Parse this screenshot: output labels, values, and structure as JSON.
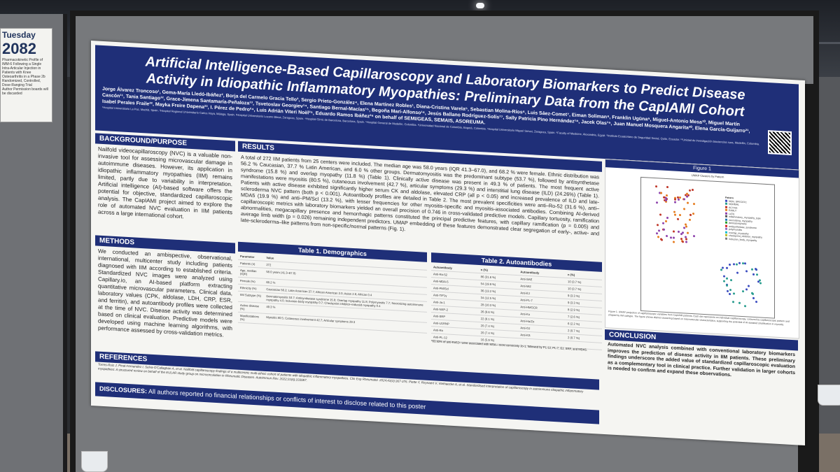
{
  "side_card": {
    "day": "Tuesday",
    "number": "2082",
    "blurb": "Pharmacokinetic Profile of IMM-6 Following a Single Intra-Articular Injection in Patients with Knee Osteoarthritis in a Phase 2b Randomized, Controlled, Dose-Ranging Trial",
    "footer": "Author Permission boards will be discarded"
  },
  "poster": {
    "title": "Artificial Intelligence-Based Capillaroscopy and Laboratory Biomarkers to Predict Disease Activity in Idiopathic Inflammatory Myopathies: Preliminary Data from the CapIAMI Cohort",
    "authors": "Jorge Álvarez Troncoso¹, Gema-María Lledó-Ibáñez², Borja del Carmelo Gracia Tello³, Sergio Prieto-González⁴, Elena Martínez Robles¹, Diana-Cristina Varela⁵, Sebastian Molina-Ríos⁶, Luis Sáez-Comet⁷, Eiman Soliman⁸, Franklin Ugüna⁹, Miguel-Antonio Mesa¹⁰, Miguel Martín Cascón¹¹, Tania Santiago¹², Grace-Jimena Santamaría-Peñaloza¹³, Tsvetoslav Georgiev¹⁴, Santiago Bernal-Macías¹⁵, Begoña Marí-Alfonso¹⁶, Jesús Ballano Rodríguez-Solís¹⁷, Sally Patricia Pino Hernández¹⁸, Jacek Olas¹⁹, Juan Manuel Mosquera Angarita²⁰, Elena García-Guijarro²¹, Isabel Perales Fraile²², Mayka Freire Dapena²³, I. Pérez de Pedro²⁴, Luis Adrián Viteri Noël²⁵, Eduardo Ramos Ibáñez²⁶ on behalf of SEMI/GEAS, SEMAIS, ASOREUMA.",
    "affiliations": "¹Hospital Universitario La Paz, Madrid, Spain. ²Hospital Regional Universitario Carlos Haya, Málaga, Spain. ³Hospital Universitario Lozano Blesa, Zaragoza, Spain. ⁴Hospital Clínic de Barcelona, Barcelona, Spain. ⁵Hospital General de Medellín, Colombia. ⁶Universidad Nacional de Colombia, Bogotá, Colombia. ⁷Hospital Universitario Miguel Servet, Zaragoza, Spain. ⁸Faculty of Medicine, Alexandria, Egypt. ⁹Instituto Ecuatoriano de Seguridad Social, Quito, Ecuador. ¹⁰Unidad de investigación biociencias sura, Medellín, Colombia.",
    "sections": {
      "background_title": "BACKGROUND/PURPOSE",
      "background_text": "Nailfold videocapillaroscopy (NVC) is a valuable non-invasive tool for assessing microvascular damage in autoimmune diseases. However, its application in idiopathic inflammatory myopathies (IIM) remains limited, partly due to variability in interpretation. Artificial intelligence (AI)-based software offers the potential for objective, standardized capillaroscopic analysis. The CapIAMI project aimed to explore the role of automated NVC evaluation in IIM patients across a large international cohort.",
      "methods_title": "METHODS",
      "methods_text": "We conducted an ambispective, observational, international, multicenter study including patients diagnosed with IIM according to established criteria. Standardized NVC images were analyzed using Capillary.io, an AI-based platform extracting quantitative microvascular parameters. Clinical data, laboratory values (CPK, aldolase, LDH, CRP, ESR, and ferritin), and autoantibody profiles were collected at the time of NVC. Disease activity was determined based on clinical evaluation. Predictive models were developed using machine learning algorithms, with performance assessed by cross-validation metrics.",
      "results_title": "RESULTS",
      "results_text": "A total of 272 IIM patients from 25 centers were included. The median age was 58.0 years (IQR 41.3–67.0), and 68.2 % were female. Ethnic distribution was 56.2 % Caucasian, 37.7 % Latin American, and 6.0 % other groups. Dermatomyositis was the predominant subtype (53.7 %), followed by antisynthetase syndrome (15.8 %) and overlap myopathy (11.8 %) (Table 1). Clinically active disease was present in 49.3 % of patients. The most frequent active manifestations were myositis (80.5 %), cutaneous involvement (42.7 %), articular symptoms (29.3 %) and interstitial lung disease (ILD) (24.26%) (Table 1). Patients with active disease exhibited significantly higher serum CK and aldolase, elevated CRP (all p < 0.05) and increased prevalence of ILD and late-scleroderma NVC pattern (both p < 0.001). Autoantibody profiles are detailed in Table 2. The most prevalent specificities were anti–Ro-52 (31.6 %), anti–MDA5 (19.9 %) and anti–PM/Scl (13.2 %), with lesser frequencies for other myositis-specific and myositis-associated antibodies. Combining AI-derived capillaroscopic metrics with laboratory biomarkers yielded an overall precision of 0.746 in cross-validated predictive models. Capillary tortuosity, ramification abnormalities, megacapillary presence and hemorrhagic patterns constituted the principal predictive features, with capillary ramification (p = 0.005) and average limb width (p = 0.026) remaining independent predictors. UMAP embedding of these features demonstrated clear segregation of early-, active- and late-scleroderma–like patterns from non-specific/normal patterns (Fig. 1).",
      "conclusion_title": "CONCLUSION",
      "conclusion_text": "Automated NVC analysis combined with conventional laboratory biomarkers improves the prediction of disease activity in IIM patients. These preliminary findings underscore the added value of standardized capillaroscopic evaluation as a complementary tool in clinical practice. Further validation in larger cohorts is needed to confirm and expand these observations.",
      "references_title": "REFERENCES",
      "references_text": "Torres-Ruiz J, Pinal-Fernandez I, Selva-O'Callaghan A, et al. Nailfold capillaroscopy findings of a multicentric multi-ethnic cohort of patients with idiopathic inflammatory myopathies. Clin Exp Rheumatol. 2024;42(2):367-376. Piette Y, Reynaert V, Vanhaecke A, et al. Standardised interpretation of capillaroscopy in autoimmune idiopathic inflammatory myopathies: A structured review on behalf of the EULAR study group on microcirculation in Rheumatic Diseases. Autoimmun Rev. 2022;21(6):103087.",
      "disclosures_label": "DISCLOSURES:",
      "disclosures_text": "All authors reported no financial relationships or conflicts of interest to disclose related to this poster"
    },
    "table1": {
      "title": "Table 1. Demographics",
      "headers": [
        "Parameter",
        "Value"
      ],
      "rows": [
        [
          "Patients (n)",
          "272"
        ],
        [
          "Age, median (IQR)",
          "58.0 years (41.3–67.0)"
        ],
        [
          "Female (%)",
          "68.2 %"
        ],
        [
          "Ethnicity (%)",
          "Caucasian 56.2; Latin American 37.7; African American 3.0; Asian 2.6; African 0.4"
        ],
        [
          "IIM Subtype (%)",
          "Dermatomyositis 53.7; Antisynthetase syndrome 15.8; Overlap myopathy 11.8; Polymyositis 7.7; Necrotizing autoimmune myopathy 4.0; Inclusion-body myopathy 0.7; Checkpoint inhibitor–induced myopathy 0.4"
        ],
        [
          "Active disease (%)",
          "49.3 %"
        ],
        [
          "Manifestations (%)",
          "Myositis 80.5; Cutaneous involvement 42.7; Articular symptoms 29.3"
        ]
      ]
    },
    "table2": {
      "title": "Table 2. Autoantibodies",
      "headers": [
        "Autoantibody",
        "n (%)",
        "Autoantibody",
        "n (%)"
      ],
      "rows": [
        [
          "Anti-Ro-52",
          "86 (31.6 %)",
          "Anti-SAE",
          "10 (3.7 %)"
        ],
        [
          "Anti-MDA-5",
          "54 (19.9 %)",
          "Anti-Mi2",
          "10 (3.7 %)"
        ],
        [
          "Anti-PM/Scl",
          "36 (13.2 %)",
          "Anti-EJ",
          "9 (3.3 %)"
        ],
        [
          "Anti-TIF1γ",
          "34 (12.5 %)",
          "Anti-PL-7",
          "9 (3.3 %)"
        ],
        [
          "Anti-Jo-1",
          "28 (10.3 %)",
          "Anti-HMGCR",
          "8 (2.9 %)"
        ],
        [
          "Anti-NXP-2",
          "26 (9.6 %)",
          "Anti-Ku",
          "7 (2.6 %)"
        ],
        [
          "Anti-SRP",
          "22 (8.1 %)",
          "Anti-Ha/Zo",
          "6 (2.2 %)"
        ],
        [
          "Anti-U1RNP",
          "20 (7.4 %)",
          "Anti-OJ",
          "2 (0.7 %)"
        ],
        [
          "Anti-Ro",
          "20 (7.4 %)",
          "Anti-KS",
          "2 (0.7 %)"
        ],
        [
          "Anti-PL-12",
          "16 (5.9 %)",
          "",
          ""
        ]
      ],
      "footnote": "*63.93% of anti-Ro52+ were associated with MSA—most commonly Jo-1, followed by PL-12, PL-7, EJ, SRP, and MDA5."
    },
    "figure": {
      "title": "Figure 1",
      "plot_title": "UMAP Clusters by Pattern",
      "legend_title": "Pattern",
      "legend": [
        {
          "label": "NON_SPECIFIC",
          "color": "#3b4cc0"
        },
        {
          "label": "NORMAL",
          "color": "#2a9d8f"
        },
        {
          "label": "ACTIVE",
          "color": "#c0392b"
        },
        {
          "label": "EARLY",
          "color": "#e67e22"
        },
        {
          "label": "LATE",
          "color": "#8e44ad"
        },
        {
          "label": "inflammatory_myopathy_type",
          "color": "#555555"
        },
        {
          "label": "necrotizing_myopathy",
          "color": "#1f77b4"
        },
        {
          "label": "dermatomyositis",
          "color": "#2ca02c"
        },
        {
          "label": "antisynthetase_syndrome",
          "color": "#d62728"
        },
        {
          "label": "polymyositis",
          "color": "#9467bd"
        },
        {
          "label": "overlap_myopathy",
          "color": "#17becf"
        },
        {
          "label": "checkpoint_inhibitor_myopathy",
          "color": "#bcbd22"
        },
        {
          "label": "inclusion_body_myopathy",
          "color": "#7f7f7f"
        }
      ],
      "caption": "Figure 1. UMAP projection of capillaroscopic variables from CapIAMI patients. Each dot represents an individual capillaroscopy, coloured by capillaroscopic pattern and shaped by IIM subtype. The figure shows distinct clustering based on microvascular characteristics, supporting the potential of AI-assisted stratification in myositis."
    }
  }
}
